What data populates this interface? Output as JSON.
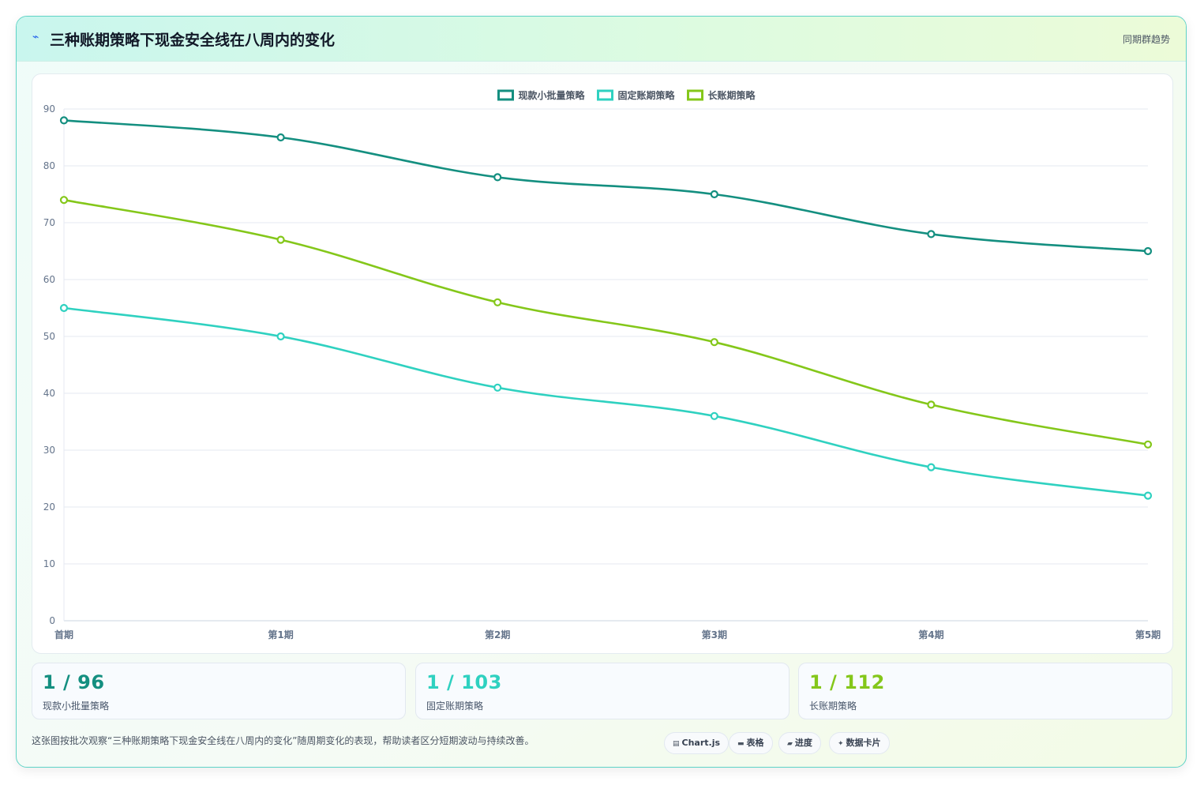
{
  "header": {
    "title": "三种账期策略下现金安全线在八周内的变化",
    "tag": "同期群趋势",
    "icon": "lightning-icon"
  },
  "chart_data": {
    "type": "line",
    "categories": [
      "首期",
      "第1期",
      "第2期",
      "第3期",
      "第4期",
      "第5期"
    ],
    "ylim": [
      0,
      90
    ],
    "yticks": [
      0,
      10,
      20,
      30,
      40,
      50,
      60,
      70,
      80,
      90
    ],
    "legend_position": "top-center",
    "grid": true,
    "series": [
      {
        "name": "现款小批量策略",
        "color": "#148f80",
        "values": [
          88,
          85,
          78,
          75,
          68,
          65
        ]
      },
      {
        "name": "固定账期策略",
        "color": "#2fd1c0",
        "values": [
          55,
          50,
          41,
          36,
          27,
          22
        ]
      },
      {
        "name": "长账期策略",
        "color": "#84c71a",
        "values": [
          74,
          67,
          56,
          49,
          38,
          31
        ]
      }
    ]
  },
  "stats": [
    {
      "value": "1 / 96",
      "label": "现款小批量策略",
      "color": "#148f80"
    },
    {
      "value": "1 / 103",
      "label": "固定账期策略",
      "color": "#2fd1c0"
    },
    {
      "value": "1 / 112",
      "label": "长账期策略",
      "color": "#84c71a"
    }
  ],
  "footer": {
    "note": "这张图按批次观察“三种账期策略下现金安全线在八周内的变化”随周期变化的表现，帮助读者区分短期波动与持续改善。",
    "chips": [
      {
        "icon": "▤",
        "label": "Chart.js"
      },
      {
        "icon": "▬",
        "label": "表格"
      },
      {
        "icon": "▰",
        "label": "进度"
      },
      {
        "icon": "✦",
        "label": "数据卡片"
      }
    ]
  }
}
